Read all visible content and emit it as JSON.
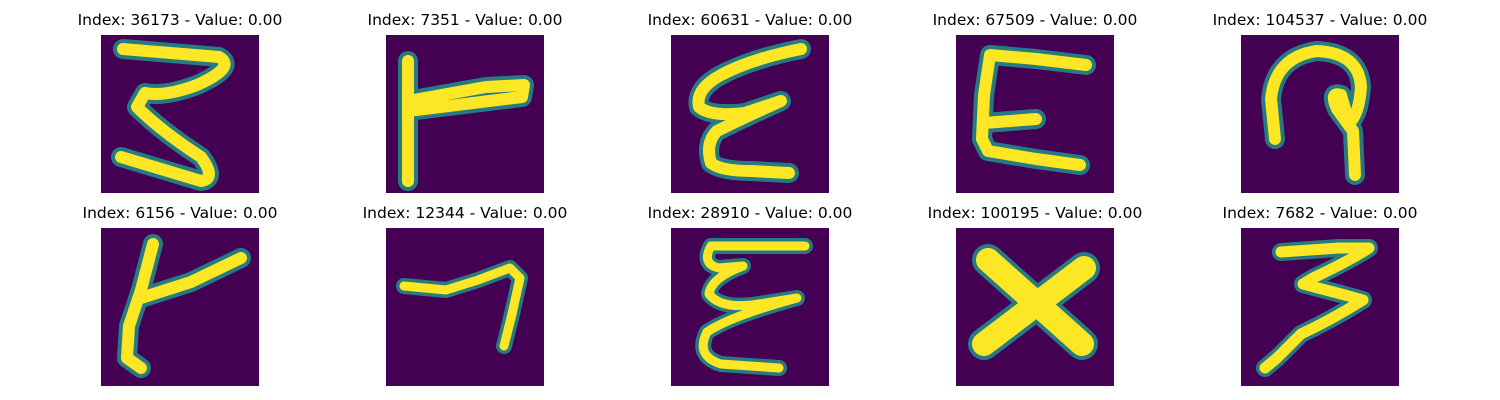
{
  "colors": {
    "background": "#440154",
    "mid": "#21918c",
    "stroke": "#fde725"
  },
  "panels": [
    {
      "title": "Index: 36173 - Value: 0.00"
    },
    {
      "title": "Index: 7351 - Value: 0.00"
    },
    {
      "title": "Index: 60631 - Value: 0.00"
    },
    {
      "title": "Index: 67509 - Value: 0.00"
    },
    {
      "title": "Index: 104537 - Value: 0.00"
    },
    {
      "title": "Index: 6156 - Value: 0.00"
    },
    {
      "title": "Index: 12344 - Value: 0.00"
    },
    {
      "title": "Index: 28910 - Value: 0.00"
    },
    {
      "title": "Index: 100195 - Value: 0.00"
    },
    {
      "title": "Index: 7682 - Value: 0.00"
    }
  ]
}
